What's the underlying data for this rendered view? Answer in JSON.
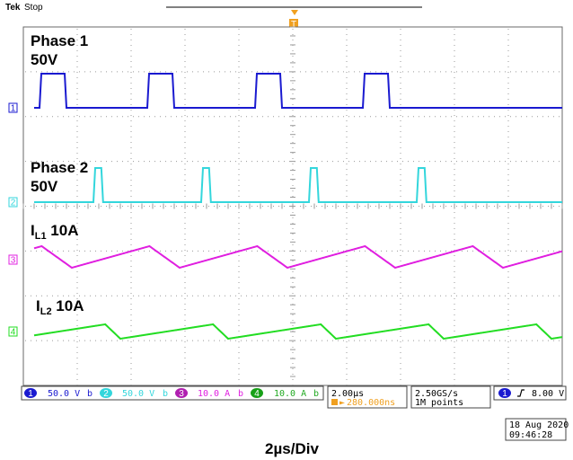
{
  "header": {
    "brand": "Tek",
    "status": "Stop"
  },
  "channels": [
    {
      "id": "1",
      "label": "Phase 1",
      "scale_label": "50V",
      "color": "#1a1ad0"
    },
    {
      "id": "2",
      "label": "Phase 2",
      "scale_label": "50V",
      "color": "#33d6dc"
    },
    {
      "id": "3",
      "label_main": "I",
      "label_sub": "L1",
      "label_scale": " 10A",
      "color": "#e020e0"
    },
    {
      "id": "4",
      "label_main": "I",
      "label_sub": "L2",
      "label_scale": " 10A",
      "color": "#22dd22"
    }
  ],
  "status_bar": {
    "ch1": "50.0 V",
    "ch2": "50.0 V",
    "ch3": "10.0 A",
    "ch4": "10.0 A",
    "timebase": "2.00µs",
    "delay": "280.000ns",
    "sample_rate": "2.50GS/s",
    "record_length": "1M points",
    "trigger_source": "1",
    "trigger_level": "8.00 V",
    "bw_symbol": "b"
  },
  "timestamp": {
    "date": "18 Aug 2020",
    "time": "09:46:28"
  },
  "caption": "2µs/Div",
  "trigger_marker": "T",
  "colors": {
    "ch1": "#1a1ad0",
    "ch2": "#33d6dc",
    "ch3": "#e020e0",
    "ch4": "#22dd22",
    "trigger": "#f0a020",
    "grid": "#9a9a9a"
  },
  "waveforms": {
    "period_div": 2.0,
    "phase1_high_start_div": [
      0.3,
      2.3,
      4.3,
      6.3
    ],
    "phase1_high_width_div": 0.5,
    "phase2_high_start_div": [
      1.3,
      3.3,
      5.3,
      7.3
    ],
    "phase2_high_width_div": 0.18
  }
}
